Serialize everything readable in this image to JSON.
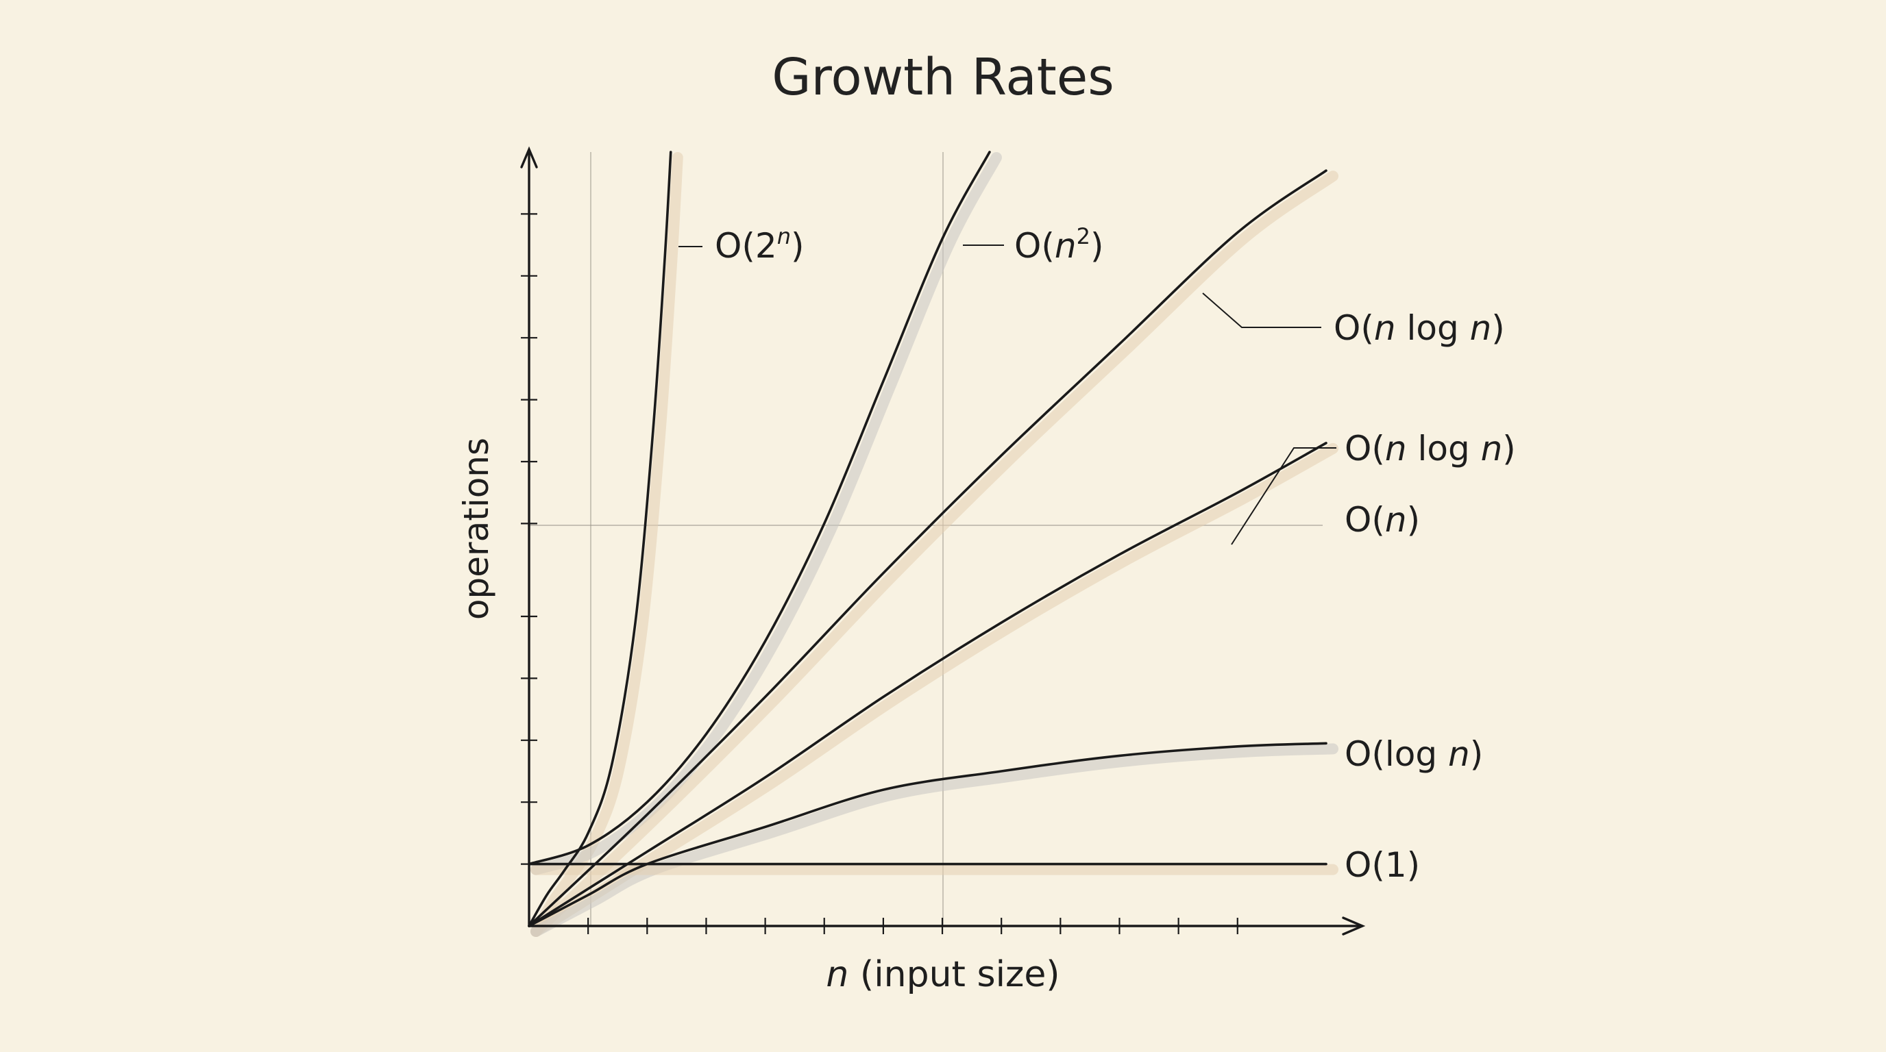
{
  "chart_data": {
    "type": "line",
    "title": "Growth Rates",
    "xlabel": "n (input size)",
    "ylabel": "operations",
    "xlim": [
      0,
      13.5
    ],
    "ylim": [
      0,
      12.5
    ],
    "grid": "partial",
    "x_ticks": [
      1,
      2,
      3,
      4,
      5,
      6,
      7,
      8,
      9,
      10,
      11,
      12
    ],
    "y_ticks": [
      1,
      2,
      3,
      4,
      5,
      6.5,
      7.5,
      8.5,
      9.5,
      10.5,
      11.5
    ],
    "series": [
      {
        "name": "O(2^n)",
        "x": [
          0,
          0.3,
          0.6,
          1.0,
          1.4,
          1.8,
          2.1,
          2.3,
          2.4
        ],
        "y": [
          0,
          0.5,
          0.9,
          1.5,
          2.6,
          4.9,
          8.0,
          10.8,
          12.5
        ],
        "shadow": "#e4cfb2"
      },
      {
        "name": "O(n^2)",
        "x": [
          0,
          1,
          2,
          3,
          4,
          5,
          6,
          7,
          7.8
        ],
        "y": [
          1,
          1.3,
          2.0,
          3.1,
          4.6,
          6.5,
          8.8,
          11.1,
          12.5
        ],
        "shadow": "#c9c6c2"
      },
      {
        "name": "O(n log n)",
        "x": [
          0,
          2,
          4,
          6,
          8,
          10,
          12,
          13.5
        ],
        "y": [
          0,
          1.8,
          3.7,
          5.7,
          7.6,
          9.4,
          11.2,
          12.2
        ],
        "shadow": "#e4cfb2"
      },
      {
        "name": "O(n)",
        "x": [
          0,
          2,
          4,
          6,
          8,
          10,
          12,
          13.5
        ],
        "y": [
          0,
          1.2,
          2.4,
          3.7,
          4.9,
          6.0,
          7.0,
          7.8
        ],
        "shadow": "#e4cfb2"
      },
      {
        "name": "O(log n)",
        "x": [
          0,
          1,
          2,
          4,
          6,
          8,
          10,
          12,
          13.5
        ],
        "y": [
          0,
          0.5,
          1.0,
          1.6,
          2.2,
          2.5,
          2.75,
          2.9,
          2.95
        ],
        "shadow": "#c9c6c2"
      },
      {
        "name": "O(1)",
        "x": [
          0,
          13.5
        ],
        "y": [
          1,
          1
        ],
        "shadow": "#e4cfb2"
      }
    ]
  },
  "labels": {
    "exp": {
      "base": "O(2",
      "sup": "n",
      "close": ")"
    },
    "quad": {
      "open": "O(",
      "var": "n",
      "sup": "2",
      "close": ")"
    },
    "nlogn_a": {
      "open": "O(",
      "v1": "n",
      "mid": " log ",
      "v2": "n",
      "close": ")"
    },
    "nlogn_b": {
      "open": "O(",
      "v1": "n",
      "mid": " log ",
      "v2": "n",
      "close": ")"
    },
    "linear": {
      "open": "O(",
      "var": "n",
      "close": ")"
    },
    "log": {
      "open": "O(log ",
      "var": "n",
      "close": ")"
    },
    "const": {
      "text": "O(1)"
    }
  },
  "colors": {
    "background": "#f8f2e2",
    "ink": "#1a1a1a",
    "shadow_tan": "#e4cfb2",
    "shadow_gray": "#c9c6c2"
  }
}
